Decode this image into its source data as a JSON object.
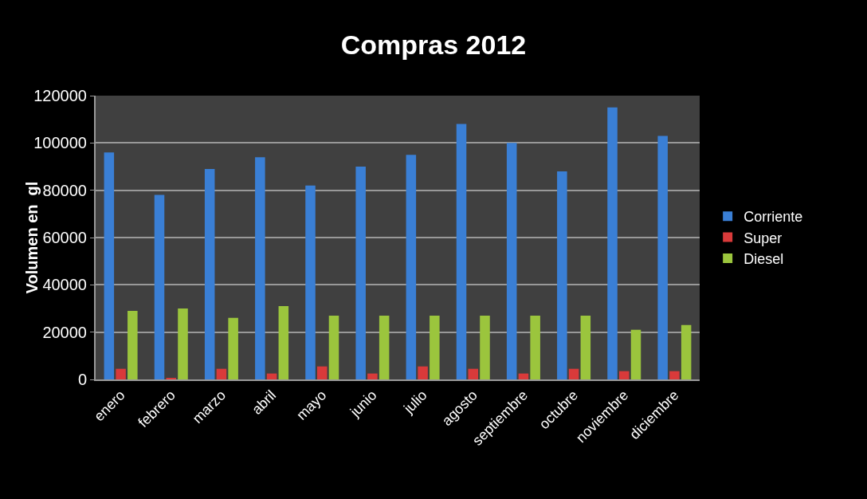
{
  "chart_data": {
    "type": "bar",
    "title": "Compras 2012",
    "ylabel": "Volumen en  gl",
    "categories": [
      "enero",
      "febrero",
      "marzo",
      "abril",
      "mayo",
      "junio",
      "julio",
      "agosto",
      "septiembre",
      "octubre",
      "noviembre",
      "diciembre"
    ],
    "series": [
      {
        "name": "Corriente",
        "color": "#3a7fd5",
        "values": [
          96000,
          78000,
          89000,
          94000,
          82000,
          90000,
          95000,
          108000,
          100000,
          88000,
          115000,
          103000
        ]
      },
      {
        "name": "Super",
        "color": "#d93a3a",
        "values": [
          4500,
          500,
          4500,
          2500,
          5500,
          2500,
          5500,
          4500,
          2500,
          4500,
          3500,
          3500
        ]
      },
      {
        "name": "Diesel",
        "color": "#9bc53d",
        "values": [
          29000,
          30000,
          26000,
          31000,
          27000,
          27000,
          27000,
          27000,
          27000,
          27000,
          21000,
          23000
        ]
      }
    ],
    "ylim": [
      0,
      120000
    ],
    "yticks": [
      0,
      20000,
      40000,
      60000,
      80000,
      100000,
      120000
    ],
    "grid": "y",
    "legend": "right"
  }
}
